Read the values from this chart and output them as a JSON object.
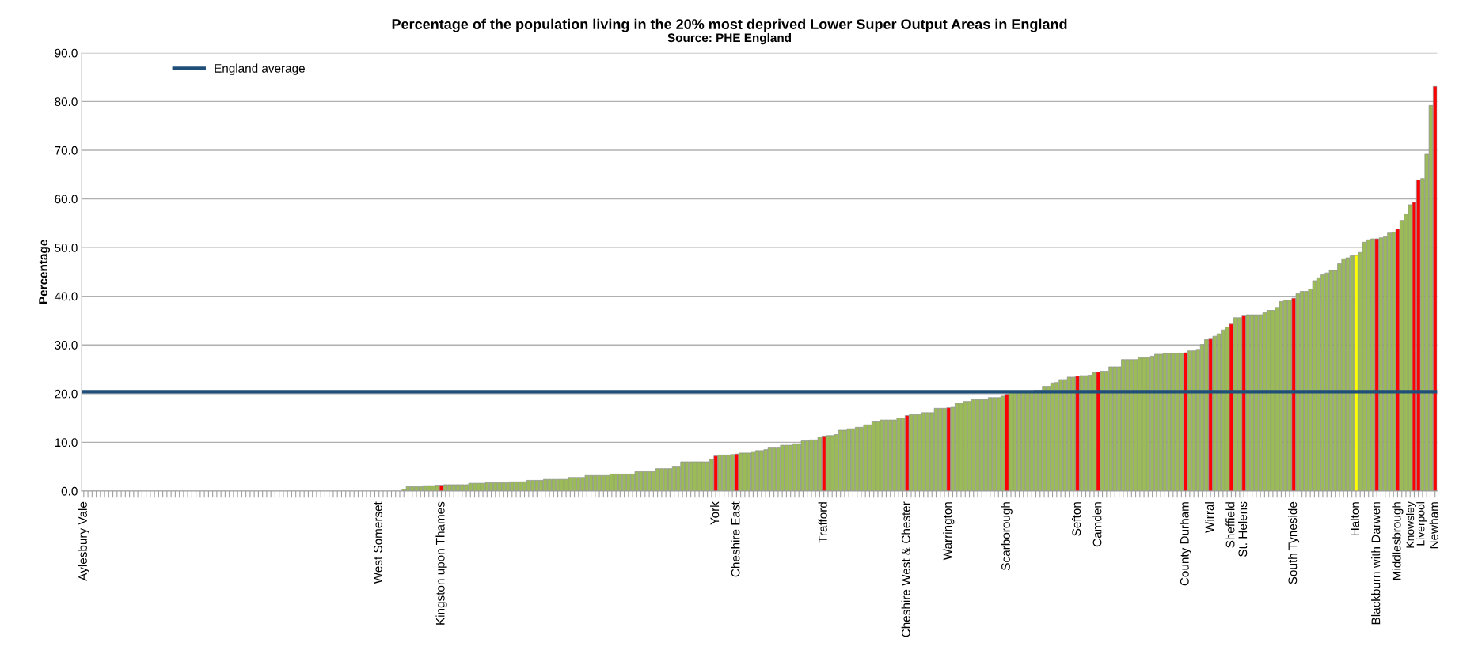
{
  "chart_data": {
    "type": "bar",
    "title": "Percentage of the population living in the 20% most deprived Lower Super Output Areas in England",
    "subtitle": "Source: PHE England",
    "ylabel": "Percentage",
    "categories": [
      "Aylesbury Vale",
      null,
      null,
      null,
      null,
      null,
      null,
      null,
      null,
      null,
      null,
      null,
      null,
      null,
      null,
      null,
      null,
      null,
      null,
      null,
      null,
      null,
      null,
      null,
      null,
      null,
      null,
      null,
      null,
      null,
      null,
      null,
      null,
      null,
      null,
      null,
      null,
      null,
      null,
      null,
      null,
      null,
      null,
      null,
      null,
      null,
      null,
      null,
      null,
      null,
      null,
      null,
      null,
      null,
      null,
      null,
      null,
      null,
      null,
      null,
      null,
      null,
      null,
      null,
      null,
      null,
      null,
      null,
      null,
      null,
      null,
      "West Somerset",
      null,
      null,
      null,
      null,
      null,
      null,
      null,
      null,
      null,
      null,
      null,
      null,
      null,
      null,
      "Kingston upon Thames",
      null,
      null,
      null,
      null,
      null,
      null,
      null,
      null,
      null,
      null,
      null,
      null,
      null,
      null,
      null,
      null,
      null,
      null,
      null,
      null,
      null,
      null,
      null,
      null,
      null,
      null,
      null,
      null,
      null,
      null,
      null,
      null,
      null,
      null,
      null,
      null,
      null,
      null,
      null,
      null,
      null,
      null,
      null,
      null,
      null,
      null,
      null,
      null,
      null,
      null,
      null,
      null,
      null,
      null,
      null,
      null,
      null,
      null,
      null,
      null,
      null,
      null,
      null,
      null,
      null,
      "York",
      null,
      null,
      null,
      null,
      "Cheshire East",
      null,
      null,
      null,
      null,
      null,
      null,
      null,
      null,
      null,
      null,
      null,
      null,
      null,
      null,
      null,
      null,
      null,
      null,
      null,
      null,
      "Trafford",
      null,
      null,
      null,
      null,
      null,
      null,
      null,
      null,
      null,
      null,
      null,
      null,
      null,
      null,
      null,
      null,
      null,
      null,
      null,
      "Cheshire West & Chester",
      null,
      null,
      null,
      null,
      null,
      null,
      null,
      null,
      null,
      "Warrington",
      null,
      null,
      null,
      null,
      null,
      null,
      null,
      null,
      null,
      null,
      null,
      null,
      null,
      "Scarborough",
      null,
      null,
      null,
      null,
      null,
      null,
      null,
      null,
      null,
      null,
      null,
      null,
      null,
      null,
      null,
      null,
      "Sefton",
      null,
      null,
      null,
      null,
      "Camden",
      null,
      null,
      null,
      null,
      null,
      null,
      null,
      null,
      null,
      null,
      null,
      null,
      null,
      null,
      null,
      null,
      null,
      null,
      null,
      null,
      "County Durham",
      null,
      null,
      null,
      null,
      null,
      "Wirral",
      null,
      null,
      null,
      null,
      "Sheffield",
      null,
      null,
      "St. Helens",
      null,
      null,
      null,
      null,
      null,
      null,
      null,
      null,
      null,
      null,
      null,
      "South Tyneside",
      null,
      null,
      null,
      null,
      null,
      null,
      null,
      null,
      null,
      null,
      null,
      null,
      null,
      null,
      "Halton",
      null,
      null,
      null,
      null,
      "Blackburn with Darwen",
      null,
      null,
      null,
      null,
      "Middlesbrough",
      null,
      null,
      null,
      "Knowsley",
      "Liverpool",
      null,
      null,
      null,
      "Newham"
    ],
    "values": [
      0,
      0,
      0,
      0,
      0,
      0,
      0,
      0,
      0,
      0,
      0,
      0,
      0,
      0,
      0,
      0,
      0,
      0,
      0,
      0,
      0,
      0,
      0,
      0,
      0,
      0,
      0,
      0,
      0,
      0,
      0,
      0,
      0,
      0,
      0,
      0,
      0,
      0,
      0,
      0,
      0,
      0,
      0,
      0,
      0,
      0,
      0,
      0,
      0,
      0,
      0,
      0,
      0,
      0,
      0,
      0,
      0,
      0,
      0,
      0,
      0,
      0,
      0,
      0,
      0,
      0,
      0,
      0,
      0,
      0,
      0,
      0,
      0,
      0,
      0,
      0,
      0,
      0.4,
      0.9,
      0.9,
      0.9,
      0.9,
      1.1,
      1.1,
      1.1,
      1.2,
      1.2,
      1.3,
      1.3,
      1.3,
      1.3,
      1.3,
      1.3,
      1.6,
      1.6,
      1.6,
      1.6,
      1.7,
      1.7,
      1.7,
      1.7,
      1.7,
      1.7,
      1.9,
      1.9,
      1.9,
      1.9,
      2.2,
      2.2,
      2.2,
      2.2,
      2.4,
      2.4,
      2.4,
      2.4,
      2.4,
      2.4,
      2.8,
      2.8,
      2.8,
      2.8,
      3.2,
      3.2,
      3.2,
      3.2,
      3.2,
      3.2,
      3.5,
      3.5,
      3.5,
      3.5,
      3.5,
      3.5,
      4.0,
      4.0,
      4.0,
      4.0,
      4.0,
      4.6,
      4.6,
      4.6,
      4.6,
      5.1,
      5.1,
      6.0,
      6.0,
      6.0,
      6.0,
      6.0,
      6.0,
      6.0,
      6.5,
      7.2,
      7.4,
      7.4,
      7.4,
      7.5,
      7.6,
      7.8,
      7.8,
      7.8,
      8.1,
      8.3,
      8.3,
      8.5,
      9.0,
      9.0,
      9.0,
      9.4,
      9.4,
      9.4,
      9.7,
      9.7,
      10.3,
      10.3,
      10.5,
      10.5,
      11.1,
      11.3,
      11.4,
      11.4,
      11.6,
      12.5,
      12.5,
      12.8,
      12.8,
      13.1,
      13.1,
      13.6,
      13.6,
      14.2,
      14.2,
      14.6,
      14.6,
      14.6,
      14.6,
      15.0,
      15.0,
      15.5,
      15.7,
      15.7,
      15.7,
      16.1,
      16.1,
      16.1,
      17.0,
      17.0,
      17.0,
      17.1,
      17.2,
      18.0,
      18.0,
      18.4,
      18.4,
      18.8,
      18.8,
      18.8,
      18.8,
      19.2,
      19.2,
      19.2,
      19.5,
      19.9,
      20.2,
      20.2,
      20.2,
      20.2,
      20.2,
      20.2,
      20.7,
      20.7,
      21.5,
      21.5,
      22.2,
      22.3,
      22.9,
      22.9,
      23.4,
      23.4,
      23.6,
      23.7,
      23.7,
      23.8,
      24.3,
      24.4,
      24.6,
      24.6,
      25.5,
      25.5,
      25.5,
      27.0,
      27.0,
      27.0,
      27.0,
      27.4,
      27.4,
      27.4,
      27.7,
      28.1,
      28.1,
      28.3,
      28.3,
      28.3,
      28.3,
      28.3,
      28.4,
      28.8,
      28.8,
      29.1,
      30.1,
      31.1,
      31.2,
      31.8,
      32.3,
      33.1,
      33.7,
      34.3,
      35.6,
      35.6,
      36.1,
      36.2,
      36.2,
      36.2,
      36.2,
      36.6,
      37.1,
      37.1,
      37.7,
      38.9,
      39.2,
      39.2,
      39.6,
      40.5,
      41.0,
      41.0,
      41.5,
      43.2,
      43.8,
      44.4,
      44.8,
      45.3,
      45.3,
      46.7,
      47.7,
      47.9,
      48.3,
      48.4,
      49.0,
      51.1,
      51.6,
      51.8,
      51.8,
      52.0,
      52.2,
      53.0,
      53.2,
      53.8,
      55.6,
      56.9,
      58.8,
      59.3,
      63.9,
      64.2,
      69.2,
      79.2,
      83.1
    ],
    "colors": [
      "#9bbb59",
      "#9bbb59",
      "#9bbb59",
      "#9bbb59",
      "#9bbb59",
      "#9bbb59",
      "#9bbb59",
      "#9bbb59",
      "#9bbb59",
      "#9bbb59",
      "#9bbb59",
      "#9bbb59",
      "#9bbb59",
      "#9bbb59",
      "#9bbb59",
      "#9bbb59",
      "#9bbb59",
      "#9bbb59",
      "#9bbb59",
      "#9bbb59",
      "#9bbb59",
      "#9bbb59",
      "#9bbb59",
      "#9bbb59",
      "#9bbb59",
      "#9bbb59",
      "#9bbb59",
      "#9bbb59",
      "#9bbb59",
      "#9bbb59",
      "#9bbb59",
      "#9bbb59",
      "#9bbb59",
      "#9bbb59",
      "#9bbb59",
      "#9bbb59",
      "#9bbb59",
      "#9bbb59",
      "#9bbb59",
      "#9bbb59",
      "#9bbb59",
      "#9bbb59",
      "#9bbb59",
      "#9bbb59",
      "#9bbb59",
      "#9bbb59",
      "#9bbb59",
      "#9bbb59",
      "#9bbb59",
      "#9bbb59",
      "#9bbb59",
      "#9bbb59",
      "#9bbb59",
      "#9bbb59",
      "#9bbb59",
      "#9bbb59",
      "#9bbb59",
      "#9bbb59",
      "#9bbb59",
      "#9bbb59",
      "#9bbb59",
      "#9bbb59",
      "#9bbb59",
      "#9bbb59",
      "#9bbb59",
      "#9bbb59",
      "#9bbb59",
      "#9bbb59",
      "#9bbb59",
      "#9bbb59",
      "#9bbb59",
      "#9bbb59",
      "#9bbb59",
      "#9bbb59",
      "#9bbb59",
      "#9bbb59",
      "#9bbb59",
      "#9bbb59",
      "#9bbb59",
      "#9bbb59",
      "#9bbb59",
      "#9bbb59",
      "#9bbb59",
      "#9bbb59",
      "#9bbb59",
      "#9bbb59",
      "#ff0000",
      "#9bbb59",
      "#9bbb59",
      "#9bbb59",
      "#9bbb59",
      "#9bbb59",
      "#9bbb59",
      "#9bbb59",
      "#9bbb59",
      "#9bbb59",
      "#9bbb59",
      "#9bbb59",
      "#9bbb59",
      "#9bbb59",
      "#9bbb59",
      "#9bbb59",
      "#9bbb59",
      "#9bbb59",
      "#9bbb59",
      "#9bbb59",
      "#9bbb59",
      "#9bbb59",
      "#9bbb59",
      "#9bbb59",
      "#9bbb59",
      "#9bbb59",
      "#9bbb59",
      "#9bbb59",
      "#9bbb59",
      "#9bbb59",
      "#9bbb59",
      "#9bbb59",
      "#9bbb59",
      "#9bbb59",
      "#9bbb59",
      "#9bbb59",
      "#9bbb59",
      "#9bbb59",
      "#9bbb59",
      "#9bbb59",
      "#9bbb59",
      "#9bbb59",
      "#9bbb59",
      "#9bbb59",
      "#9bbb59",
      "#9bbb59",
      "#9bbb59",
      "#9bbb59",
      "#9bbb59",
      "#9bbb59",
      "#9bbb59",
      "#9bbb59",
      "#9bbb59",
      "#9bbb59",
      "#9bbb59",
      "#9bbb59",
      "#9bbb59",
      "#9bbb59",
      "#9bbb59",
      "#9bbb59",
      "#9bbb59",
      "#9bbb59",
      "#9bbb59",
      "#9bbb59",
      "#9bbb59",
      "#9bbb59",
      "#ff0000",
      "#9bbb59",
      "#9bbb59",
      "#9bbb59",
      "#9bbb59",
      "#ff0000",
      "#9bbb59",
      "#9bbb59",
      "#9bbb59",
      "#9bbb59",
      "#9bbb59",
      "#9bbb59",
      "#9bbb59",
      "#9bbb59",
      "#9bbb59",
      "#9bbb59",
      "#9bbb59",
      "#9bbb59",
      "#9bbb59",
      "#9bbb59",
      "#9bbb59",
      "#9bbb59",
      "#9bbb59",
      "#9bbb59",
      "#9bbb59",
      "#9bbb59",
      "#ff0000",
      "#9bbb59",
      "#9bbb59",
      "#9bbb59",
      "#9bbb59",
      "#9bbb59",
      "#9bbb59",
      "#9bbb59",
      "#9bbb59",
      "#9bbb59",
      "#9bbb59",
      "#9bbb59",
      "#9bbb59",
      "#9bbb59",
      "#9bbb59",
      "#9bbb59",
      "#9bbb59",
      "#9bbb59",
      "#9bbb59",
      "#9bbb59",
      "#ff0000",
      "#9bbb59",
      "#9bbb59",
      "#9bbb59",
      "#9bbb59",
      "#9bbb59",
      "#9bbb59",
      "#9bbb59",
      "#9bbb59",
      "#9bbb59",
      "#ff0000",
      "#9bbb59",
      "#9bbb59",
      "#9bbb59",
      "#9bbb59",
      "#9bbb59",
      "#9bbb59",
      "#9bbb59",
      "#9bbb59",
      "#9bbb59",
      "#9bbb59",
      "#9bbb59",
      "#9bbb59",
      "#9bbb59",
      "#ff0000",
      "#9bbb59",
      "#9bbb59",
      "#9bbb59",
      "#9bbb59",
      "#9bbb59",
      "#9bbb59",
      "#9bbb59",
      "#9bbb59",
      "#9bbb59",
      "#9bbb59",
      "#9bbb59",
      "#9bbb59",
      "#9bbb59",
      "#9bbb59",
      "#9bbb59",
      "#9bbb59",
      "#ff0000",
      "#9bbb59",
      "#9bbb59",
      "#9bbb59",
      "#9bbb59",
      "#ff0000",
      "#9bbb59",
      "#9bbb59",
      "#9bbb59",
      "#9bbb59",
      "#9bbb59",
      "#9bbb59",
      "#9bbb59",
      "#9bbb59",
      "#9bbb59",
      "#9bbb59",
      "#9bbb59",
      "#9bbb59",
      "#9bbb59",
      "#9bbb59",
      "#9bbb59",
      "#9bbb59",
      "#9bbb59",
      "#9bbb59",
      "#9bbb59",
      "#9bbb59",
      "#ff0000",
      "#9bbb59",
      "#9bbb59",
      "#9bbb59",
      "#9bbb59",
      "#9bbb59",
      "#ff0000",
      "#9bbb59",
      "#9bbb59",
      "#9bbb59",
      "#9bbb59",
      "#ff0000",
      "#9bbb59",
      "#9bbb59",
      "#ff0000",
      "#9bbb59",
      "#9bbb59",
      "#9bbb59",
      "#9bbb59",
      "#9bbb59",
      "#9bbb59",
      "#9bbb59",
      "#9bbb59",
      "#9bbb59",
      "#9bbb59",
      "#9bbb59",
      "#ff0000",
      "#9bbb59",
      "#9bbb59",
      "#9bbb59",
      "#9bbb59",
      "#9bbb59",
      "#9bbb59",
      "#9bbb59",
      "#9bbb59",
      "#9bbb59",
      "#9bbb59",
      "#9bbb59",
      "#9bbb59",
      "#9bbb59",
      "#9bbb59",
      "#ffff00",
      "#9bbb59",
      "#9bbb59",
      "#9bbb59",
      "#9bbb59",
      "#ff0000",
      "#9bbb59",
      "#9bbb59",
      "#9bbb59",
      "#9bbb59",
      "#ff0000",
      "#9bbb59",
      "#9bbb59",
      "#9bbb59",
      "#ff0000",
      "#ff0000",
      "#9bbb59",
      "#9bbb59",
      "#9bbb59",
      "#ff0000"
    ],
    "ylim": [
      0,
      90
    ],
    "yticks": [
      {
        "value": 0,
        "label": "0.0"
      },
      {
        "value": 10,
        "label": "10.0"
      },
      {
        "value": 20,
        "label": "20.0"
      },
      {
        "value": 30,
        "label": "30.0"
      },
      {
        "value": 40,
        "label": "40.0"
      },
      {
        "value": 50,
        "label": "50.0"
      },
      {
        "value": 60,
        "label": "60.0"
      },
      {
        "value": 70,
        "label": "70.0"
      },
      {
        "value": 80,
        "label": "80.0"
      },
      {
        "value": 90,
        "label": "90.0"
      }
    ],
    "ref_lines": [
      {
        "axis": "y",
        "value": 20.4,
        "label": "England average",
        "color": "#1f4e79",
        "line_style": "solid"
      }
    ],
    "grid": "y",
    "legend": "top left"
  }
}
